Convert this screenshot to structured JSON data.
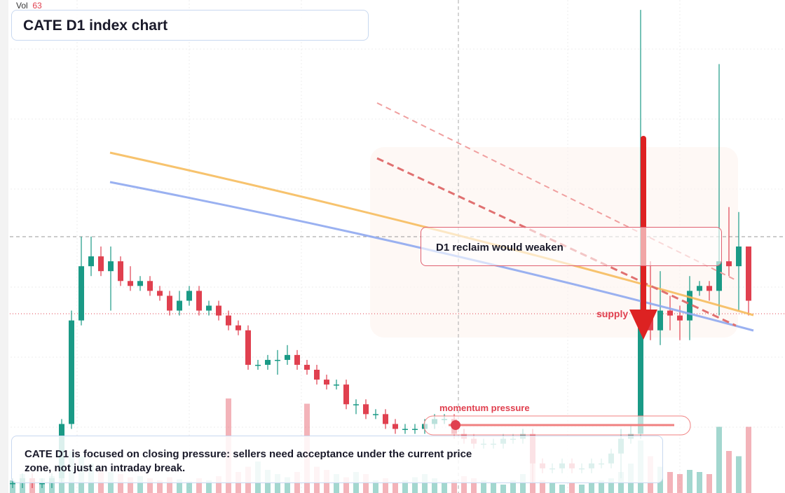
{
  "chart_data": {
    "type": "candlestick",
    "title": "CATE D1 index chart",
    "volume_label": "Vol",
    "volume_last": 63,
    "open": [
      2,
      2,
      3,
      2,
      2,
      3,
      14,
      35,
      46,
      48,
      45,
      47,
      43,
      42,
      43,
      41,
      40,
      37,
      39,
      41,
      37,
      38,
      36,
      34,
      33,
      26,
      26,
      27,
      27,
      28,
      26,
      25,
      23,
      22,
      22,
      18,
      18,
      16,
      16,
      14,
      13,
      13,
      13,
      14,
      15,
      15,
      12,
      11,
      10,
      10,
      10,
      11,
      11,
      12,
      6,
      5,
      5,
      6,
      5,
      5,
      6,
      6,
      8,
      11,
      12,
      36,
      33,
      37,
      36,
      35,
      41,
      42,
      41,
      47,
      46,
      50
    ],
    "high": [
      3,
      4,
      4,
      3,
      4,
      15,
      37,
      52,
      52,
      50,
      50,
      48,
      46,
      44,
      44,
      42,
      41,
      41,
      42,
      42,
      39,
      39,
      37,
      35,
      34,
      27,
      28,
      29,
      30,
      29,
      27,
      26,
      24,
      23,
      23,
      19,
      19,
      17,
      17,
      15,
      14,
      14,
      15,
      16,
      16,
      16,
      13,
      12,
      11,
      11,
      12,
      12,
      13,
      13,
      7,
      6,
      7,
      7,
      6,
      7,
      7,
      9,
      13,
      14,
      98,
      47,
      45,
      40,
      38,
      44,
      43,
      43,
      87,
      58,
      57,
      50
    ],
    "low": [
      1,
      1,
      1,
      1,
      1,
      2,
      13,
      34,
      44,
      44,
      37,
      42,
      41,
      41,
      40,
      39,
      36,
      36,
      38,
      36,
      36,
      35,
      33,
      32,
      25,
      25,
      25,
      24,
      26,
      25,
      24,
      22,
      21,
      21,
      17,
      16,
      15,
      15,
      13,
      12,
      12,
      12,
      12,
      13,
      14,
      11,
      10,
      9,
      9,
      9,
      9,
      10,
      10,
      2,
      4,
      4,
      4,
      4,
      4,
      4,
      5,
      5,
      3,
      10,
      11,
      31,
      30,
      33,
      31,
      31,
      40,
      39,
      36,
      44,
      37,
      36
    ],
    "close": [
      2,
      3,
      2,
      2,
      3,
      14,
      35,
      46,
      48,
      45,
      47,
      43,
      42,
      43,
      41,
      40,
      37,
      39,
      41,
      37,
      38,
      36,
      34,
      33,
      26,
      26,
      27,
      27,
      28,
      26,
      25,
      23,
      22,
      22,
      18,
      18,
      16,
      16,
      14,
      13,
      13,
      13,
      14,
      15,
      15,
      12,
      11,
      10,
      10,
      10,
      11,
      11,
      12,
      6,
      5,
      5,
      6,
      5,
      5,
      6,
      6,
      8,
      11,
      12,
      36,
      33,
      37,
      36,
      35,
      41,
      42,
      41,
      47,
      46,
      50,
      39
    ],
    "volume": [
      12,
      18,
      10,
      14,
      16,
      30,
      40,
      35,
      28,
      22,
      20,
      18,
      15,
      16,
      14,
      12,
      15,
      13,
      11,
      14,
      12,
      16,
      90,
      20,
      25,
      30,
      22,
      18,
      15,
      20,
      85,
      25,
      22,
      18,
      15,
      20,
      18,
      12,
      14,
      10,
      12,
      15,
      18,
      14,
      10,
      12,
      16,
      14,
      12,
      10,
      8,
      12,
      18,
      30,
      12,
      10,
      8,
      10,
      8,
      10,
      12,
      14,
      20,
      28,
      50,
      35,
      25,
      20,
      18,
      22,
      20,
      18,
      63,
      40,
      35,
      63
    ],
    "up_color": "#1a9a86",
    "down_color": "#e0404f",
    "ylim": [
      0,
      100
    ],
    "volume_lim": [
      0,
      100
    ],
    "annotations": [
      "D1 reclaim would weaken",
      "supply",
      "momentum pressure",
      "CATE D1 is focused on closing pressure: sellers need acceptance under the current price zone, not just an intraday break."
    ]
  }
}
